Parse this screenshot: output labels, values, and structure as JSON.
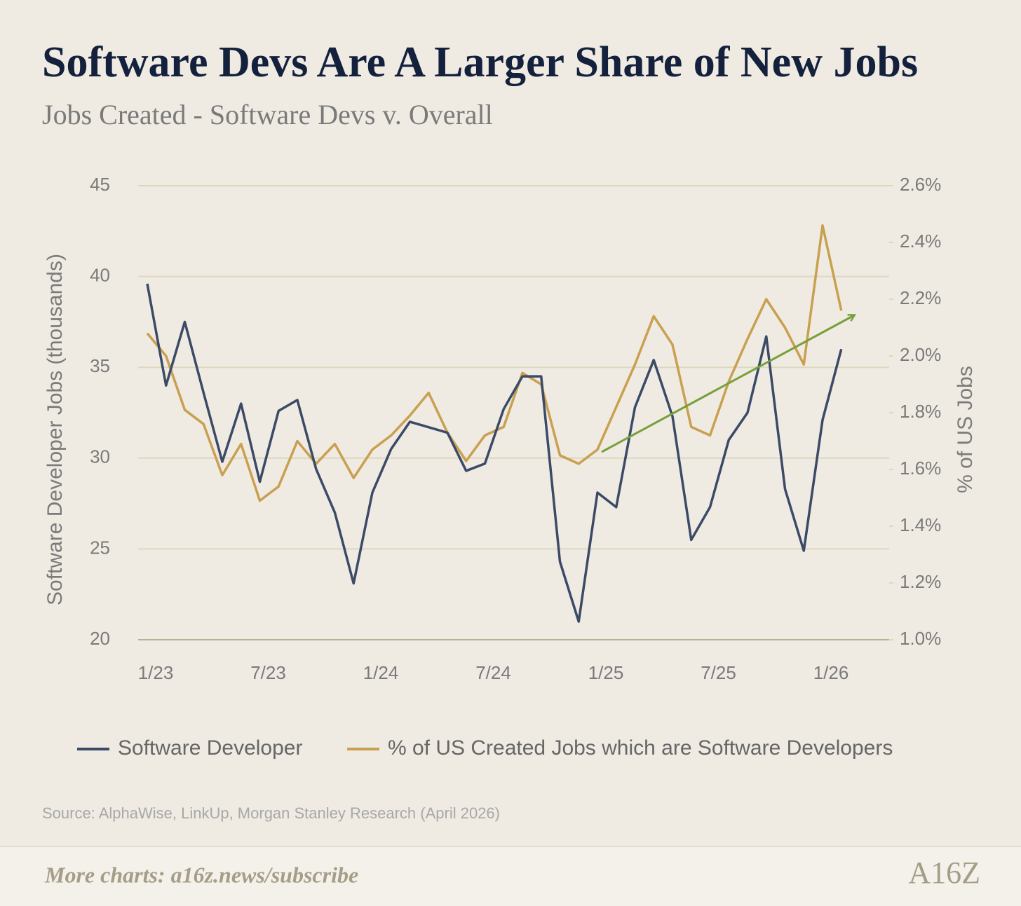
{
  "chart_data": {
    "type": "line",
    "title": "Software Devs Are A Larger Share of New Jobs",
    "subtitle": "Jobs Created - Software Devs v. Overall",
    "ylabel": "Software Developer Jobs (thousands)",
    "y2label": "% of US Jobs",
    "categories": [
      "1/23",
      null,
      null,
      null,
      null,
      null,
      "7/23",
      null,
      null,
      null,
      null,
      null,
      "1/24",
      null,
      null,
      null,
      null,
      null,
      "7/24",
      null,
      null,
      null,
      null,
      null,
      "1/25",
      null,
      null,
      null,
      null,
      null,
      "7/25",
      null,
      null,
      null,
      null,
      null,
      "1/26",
      null
    ],
    "series": [
      {
        "name": "Software Developer",
        "color": "#3b4a66",
        "values": [
          39.6,
          34.0,
          37.5,
          33.6,
          29.8,
          33.0,
          28.7,
          32.6,
          33.2,
          29.4,
          27.0,
          23.1,
          28.1,
          30.5,
          32.0,
          31.7,
          31.4,
          29.3,
          29.7,
          32.7,
          34.5,
          34.5,
          24.3,
          21.0,
          28.1,
          27.3,
          32.8,
          35.4,
          32.3,
          25.5,
          27.3,
          31.0,
          32.5,
          36.7,
          28.3,
          24.9,
          32.1,
          36.0
        ]
      },
      {
        "name": "% of US Created Jobs which are Software Developers",
        "color": "#c9a050",
        "axis": "y2",
        "values": [
          2.08,
          2.0,
          1.81,
          1.76,
          1.58,
          1.69,
          1.49,
          1.54,
          1.7,
          1.62,
          1.69,
          1.57,
          1.67,
          1.72,
          1.79,
          1.87,
          1.73,
          1.63,
          1.72,
          1.75,
          1.94,
          1.9,
          1.65,
          1.62,
          1.67,
          1.82,
          1.97,
          2.14,
          2.04,
          1.75,
          1.72,
          1.91,
          2.06,
          2.2,
          2.1,
          1.97,
          2.46,
          2.16
        ]
      }
    ],
    "ylim": [
      20,
      45
    ],
    "yticks": [
      20,
      25,
      30,
      35,
      40,
      45
    ],
    "y2lim": [
      1.0,
      2.6
    ],
    "y2ticks": [
      {
        "value": 1.0,
        "label": "1.0%"
      },
      {
        "value": 1.2,
        "label": "1.2%"
      },
      {
        "value": 1.4,
        "label": "1.4%"
      },
      {
        "value": 1.6,
        "label": "1.6%"
      },
      {
        "value": 1.8,
        "label": "1.8%"
      },
      {
        "value": 2.0,
        "label": "2.0%"
      },
      {
        "value": 2.2,
        "label": "2.2%"
      },
      {
        "value": 2.4,
        "label": "2.4%"
      },
      {
        "value": 2.6,
        "label": "2.6%"
      }
    ],
    "grid": true,
    "source": "Source: AlphaWise, LinkUp, Morgan Stanley Research (April 2026)",
    "footer": "More charts: a16z.news/subscribe",
    "logo": "A16Z"
  }
}
